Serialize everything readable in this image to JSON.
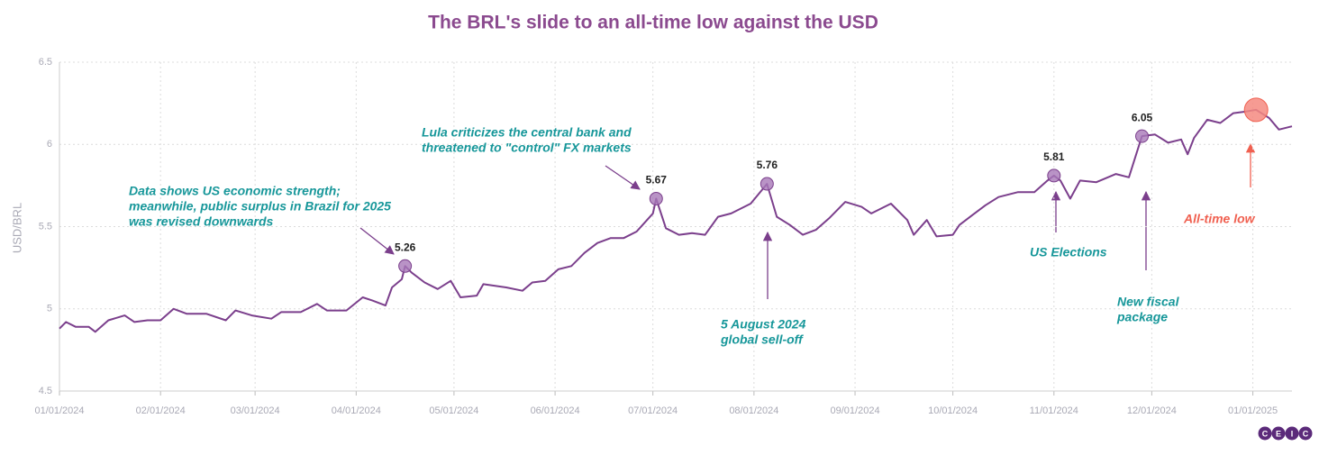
{
  "chart_data": {
    "type": "line",
    "title": "The BRL's slide to an all-time low against the USD",
    "y_label": "USD/BRL",
    "x": [
      "2024-01-01",
      "2024-01-03",
      "2024-01-06",
      "2024-01-10",
      "2024-01-12",
      "2024-01-16",
      "2024-01-21",
      "2024-01-24",
      "2024-01-28",
      "2024-02-01",
      "2024-02-05",
      "2024-02-09",
      "2024-02-15",
      "2024-02-21",
      "2024-02-24",
      "2024-02-29",
      "2024-03-06",
      "2024-03-09",
      "2024-03-15",
      "2024-03-20",
      "2024-03-23",
      "2024-03-29",
      "2024-04-03",
      "2024-04-06",
      "2024-04-10",
      "2024-04-12",
      "2024-04-15",
      "2024-04-16",
      "2024-04-18",
      "2024-04-22",
      "2024-04-26",
      "2024-04-30",
      "2024-05-03",
      "2024-05-08",
      "2024-05-10",
      "2024-05-17",
      "2024-05-22",
      "2024-05-25",
      "2024-05-29",
      "2024-06-02",
      "2024-06-06",
      "2024-06-10",
      "2024-06-14",
      "2024-06-18",
      "2024-06-22",
      "2024-06-26",
      "2024-07-01",
      "2024-07-02",
      "2024-07-05",
      "2024-07-09",
      "2024-07-13",
      "2024-07-17",
      "2024-07-21",
      "2024-07-25",
      "2024-07-31",
      "2024-08-05",
      "2024-08-08",
      "2024-08-12",
      "2024-08-16",
      "2024-08-20",
      "2024-08-24",
      "2024-08-29",
      "2024-09-03",
      "2024-09-06",
      "2024-09-12",
      "2024-09-17",
      "2024-09-19",
      "2024-09-23",
      "2024-09-26",
      "2024-10-01",
      "2024-10-03",
      "2024-10-07",
      "2024-10-11",
      "2024-10-15",
      "2024-10-21",
      "2024-10-26",
      "2024-10-30",
      "2024-11-01",
      "2024-11-03",
      "2024-11-06",
      "2024-11-09",
      "2024-11-14",
      "2024-11-20",
      "2024-11-24",
      "2024-11-28",
      "2024-12-02",
      "2024-12-06",
      "2024-12-10",
      "2024-12-12",
      "2024-12-14",
      "2024-12-18",
      "2024-12-22",
      "2024-12-26",
      "2024-12-30",
      "2025-01-02",
      "2025-01-06",
      "2025-01-09",
      "2025-01-13"
    ],
    "series": [
      {
        "name": "USD/BRL",
        "color": "#7b3f8c",
        "values": [
          4.88,
          4.92,
          4.89,
          4.89,
          4.86,
          4.93,
          4.96,
          4.92,
          4.93,
          4.93,
          5.0,
          4.97,
          4.97,
          4.93,
          4.99,
          4.96,
          4.94,
          4.98,
          4.98,
          5.03,
          4.99,
          4.99,
          5.07,
          5.05,
          5.02,
          5.13,
          5.18,
          5.26,
          5.22,
          5.16,
          5.12,
          5.17,
          5.07,
          5.08,
          5.15,
          5.13,
          5.11,
          5.16,
          5.17,
          5.24,
          5.26,
          5.34,
          5.4,
          5.43,
          5.43,
          5.47,
          5.58,
          5.67,
          5.49,
          5.45,
          5.46,
          5.45,
          5.56,
          5.58,
          5.64,
          5.76,
          5.56,
          5.51,
          5.45,
          5.48,
          5.55,
          5.65,
          5.62,
          5.58,
          5.64,
          5.54,
          5.45,
          5.54,
          5.44,
          5.45,
          5.51,
          5.57,
          5.63,
          5.68,
          5.71,
          5.71,
          5.78,
          5.81,
          5.78,
          5.67,
          5.78,
          5.77,
          5.82,
          5.8,
          6.05,
          6.06,
          6.01,
          6.03,
          5.94,
          6.04,
          6.15,
          6.13,
          6.19,
          6.2,
          6.21,
          6.16,
          6.09,
          6.11
        ]
      }
    ],
    "highlight_points": [
      27,
      47,
      55,
      77,
      84
    ],
    "low_point": 94,
    "xlim": [
      "2024-01-01",
      "2025-01-13"
    ],
    "xticks": [
      {
        "value": "2024-01-01",
        "label": "01/01/2024"
      },
      {
        "value": "2024-02-01",
        "label": "02/01/2024"
      },
      {
        "value": "2024-03-01",
        "label": "03/01/2024"
      },
      {
        "value": "2024-04-01",
        "label": "04/01/2024"
      },
      {
        "value": "2024-05-01",
        "label": "05/01/2024"
      },
      {
        "value": "2024-06-01",
        "label": "06/01/2024"
      },
      {
        "value": "2024-07-01",
        "label": "07/01/2024"
      },
      {
        "value": "2024-08-01",
        "label": "08/01/2024"
      },
      {
        "value": "2024-09-01",
        "label": "09/01/2024"
      },
      {
        "value": "2024-10-01",
        "label": "10/01/2024"
      },
      {
        "value": "2024-11-01",
        "label": "11/01/2024"
      },
      {
        "value": "2024-12-01",
        "label": "12/01/2024"
      },
      {
        "value": "2025-01-01",
        "label": "01/01/2025"
      }
    ],
    "ylim": [
      4.5,
      6.5
    ],
    "yticks": [
      4.5,
      5,
      5.5,
      6,
      6.5
    ],
    "grid": true,
    "annotations": [
      [
        "Data shows US economic strength;",
        "meanwhile, public surplus in Brazil for 2025",
        "was revised downwards"
      ],
      [
        "Lula criticizes the central bank and",
        "threatened to \"control\" FX markets"
      ],
      [
        "5 August 2024",
        "global sell-off"
      ],
      [
        "US Elections"
      ],
      [
        "New fiscal",
        "package"
      ],
      [
        "All-time low"
      ]
    ],
    "logo": [
      "C",
      "E",
      "I",
      "C"
    ]
  }
}
